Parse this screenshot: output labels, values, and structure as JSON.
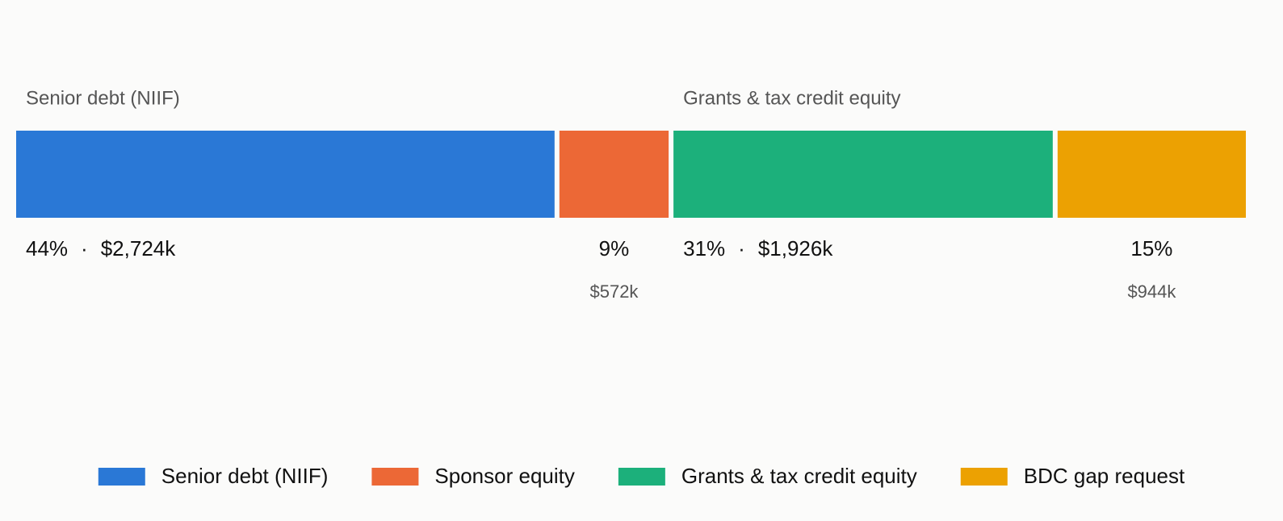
{
  "chart_data": {
    "type": "stacked-bar",
    "separator": "·",
    "series": [
      {
        "name": "Senior debt (NIIF)",
        "color": "#2a78d6",
        "values": [
          2724
        ],
        "value_labels": [
          "$2,724k"
        ],
        "share": 44,
        "share_label": "44%"
      },
      {
        "name": "Sponsor equity",
        "color": "#ec6836",
        "values": [
          572
        ],
        "value_labels": [
          "$572k"
        ],
        "share": 9,
        "share_label": "9%"
      },
      {
        "name": "Grants & tax credit equity",
        "color": "#1cb07b",
        "values": [
          1926
        ],
        "value_labels": [
          "$1,926k"
        ],
        "share": 31,
        "share_label": "31%"
      },
      {
        "name": "BDC gap request",
        "color": "#eca102",
        "values": [
          944
        ],
        "value_labels": [
          "$944k"
        ],
        "share": 15,
        "share_label": "15%"
      }
    ],
    "legend": "bottom"
  }
}
